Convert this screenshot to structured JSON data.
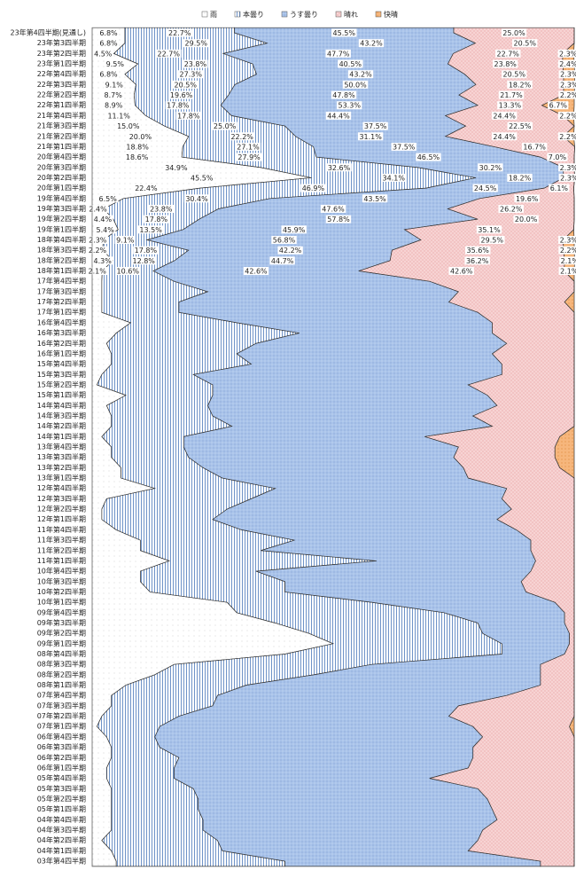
{
  "chart_data": {
    "type": "stacked_area_horizontal",
    "categories": [
      "23年第4四半期(見通し)",
      "23年第3四半期",
      "23年第2四半期",
      "23年第1四半期",
      "22年第4四半期",
      "22年第3四半期",
      "22年第2四半期",
      "22年第1四半期",
      "21年第4四半期",
      "21年第3四半期",
      "21年第2四半期",
      "21年第1四半期",
      "20年第4四半期",
      "20年第3四半期",
      "20年第2四半期",
      "20年第1四半期",
      "19年第4四半期",
      "19年第3四半期",
      "19年第2四半期",
      "19年第1四半期",
      "18年第4四半期",
      "18年第3四半期",
      "18年第2四半期",
      "18年第1四半期",
      "17年第4四半期",
      "17年第3四半期",
      "17年第2四半期",
      "17年第1四半期",
      "16年第4四半期",
      "16年第3四半期",
      "16年第2四半期",
      "16年第1四半期",
      "15年第4四半期",
      "15年第3四半期",
      "15年第2四半期",
      "15年第1四半期",
      "14年第4四半期",
      "14年第3四半期",
      "14年第2四半期",
      "14年第1四半期",
      "13年第4四半期",
      "13年第3四半期",
      "13年第2四半期",
      "13年第1四半期",
      "12年第4四半期",
      "12年第3四半期",
      "12年第2四半期",
      "12年第1四半期",
      "11年第4四半期",
      "11年第3四半期",
      "11年第2四半期",
      "11年第1四半期",
      "10年第4四半期",
      "10年第3四半期",
      "10年第2四半期",
      "10年第1四半期",
      "09年第4四半期",
      "09年第3四半期",
      "09年第2四半期",
      "09年第1四半期",
      "08年第4四半期",
      "08年第3四半期",
      "08年第2四半期",
      "08年第1四半期",
      "07年第4四半期",
      "07年第3四半期",
      "07年第2四半期",
      "07年第1四半期",
      "06年第4四半期",
      "06年第3四半期",
      "06年第2四半期",
      "06年第1四半期",
      "05年第4四半期",
      "05年第3四半期",
      "05年第2四半期",
      "05年第1四半期",
      "04年第4四半期",
      "04年第3四半期",
      "04年第2四半期",
      "04年第1四半期",
      "03年第4四半期"
    ],
    "xlim": [
      0,
      100
    ],
    "series": [
      {
        "name": "雨",
        "color": "#ffffff",
        "values": [
          6.8,
          6.8,
          4.5,
          9.5,
          6.8,
          9.1,
          8.7,
          8.9,
          11.1,
          15.0,
          20.0,
          18.8,
          18.6,
          34.9,
          45.5,
          22.4,
          6.5,
          2.4,
          4.4,
          5.4,
          2.3,
          2.2,
          4.3,
          2.1,
          2,
          2,
          2,
          2,
          8,
          5,
          3,
          4,
          4,
          2,
          1,
          7,
          3,
          4,
          4,
          2,
          4,
          4,
          6,
          6,
          13,
          3,
          2,
          2,
          5,
          10,
          10,
          16,
          10,
          10,
          12,
          28,
          30,
          38,
          45,
          50,
          40,
          17,
          13,
          7,
          4,
          4,
          2,
          1,
          3,
          4,
          4,
          3,
          3,
          4,
          4,
          4,
          4,
          4,
          2,
          4,
          5
        ],
        "value_labels": [
          "6.8%",
          "6.8%",
          "4.5%",
          "9.5%",
          "6.8%",
          "9.1%",
          "8.7%",
          "8.9%",
          "11.1%",
          "15.0%",
          "20.0%",
          "18.8%",
          "18.6%",
          "34.9%",
          "45.5%",
          "22.4%",
          "6.5%",
          "2.4%",
          "4.4%",
          "5.4%",
          "2.3%",
          "2.2%",
          "4.3%",
          "2.1%",
          null,
          null,
          null,
          null,
          null,
          null,
          null,
          null,
          null,
          null,
          null,
          null,
          null,
          null,
          null,
          null,
          null,
          null,
          null,
          null,
          null,
          null,
          null,
          null,
          null,
          null,
          null,
          null,
          null,
          null,
          null,
          null,
          null,
          null,
          null,
          null,
          null,
          null,
          null,
          null,
          null,
          null,
          null,
          null,
          null,
          null,
          null,
          null,
          null,
          null,
          null,
          null,
          null,
          null,
          null,
          null,
          null
        ]
      },
      {
        "name": "本曇り",
        "color": "#ffffff",
        "values": [
          22.7,
          29.5,
          22.7,
          23.8,
          27.3,
          20.5,
          19.6,
          17.8,
          17.8,
          25.0,
          22.2,
          27.1,
          27.9,
          32.6,
          34.1,
          46.9,
          30.4,
          23.8,
          17.8,
          13.5,
          9.1,
          17.8,
          12.8,
          10.6,
          15,
          22,
          16,
          16,
          22,
          38,
          31,
          26,
          29,
          19,
          24,
          18,
          21,
          21,
          25,
          17,
          15,
          16,
          17,
          21,
          25,
          30,
          26,
          23,
          26,
          32,
          25,
          43,
          24,
          30,
          28,
          30,
          43,
          42,
          36,
          35,
          45,
          41,
          33,
          25,
          22,
          21,
          16,
          13,
          10,
          10,
          14,
          14,
          14,
          17,
          18,
          18,
          19,
          19,
          24,
          23,
          35
        ],
        "value_labels": [
          "22.7%",
          "29.5%",
          "22.7%",
          "23.8%",
          "27.3%",
          "20.5%",
          "19.6%",
          "17.8%",
          "17.8%",
          "25.0%",
          "22.2%",
          "27.1%",
          "27.9%",
          "32.6%",
          "34.1%",
          "46.9%",
          "30.4%",
          "23.8%",
          "17.8%",
          "13.5%",
          "9.1%",
          "17.8%",
          "12.8%",
          "10.6%",
          null,
          null,
          null,
          null,
          null,
          null,
          null,
          null,
          null,
          null,
          null,
          null,
          null,
          null,
          null,
          null,
          null,
          null,
          null,
          null,
          null,
          null,
          null,
          null,
          null,
          null,
          null,
          null,
          null,
          null,
          null,
          null,
          null,
          null,
          null,
          null,
          null,
          null,
          null,
          null,
          null,
          null,
          null,
          null,
          null,
          null,
          null,
          null,
          null,
          null,
          null,
          null,
          null,
          null,
          null,
          null,
          null
        ]
      },
      {
        "name": "うす曇り",
        "color": "#a9c3ea",
        "values": [
          45.5,
          43.2,
          47.7,
          40.5,
          43.2,
          50.0,
          47.8,
          53.3,
          44.4,
          37.5,
          31.1,
          37.5,
          46.5,
          30.2,
          18.2,
          24.5,
          43.5,
          47.6,
          57.8,
          45.9,
          56.8,
          42.2,
          44.7,
          42.6,
          53,
          52,
          56,
          62,
          53,
          40,
          52,
          53,
          52,
          64,
          53,
          57,
          60,
          54,
          54,
          50,
          57,
          55,
          54,
          51,
          48,
          52,
          59,
          59,
          57,
          49,
          56,
          33,
          57,
          49,
          50,
          38,
          25,
          18,
          18,
          14,
          13,
          35,
          47,
          61,
          60,
          51,
          56,
          65,
          68,
          65,
          61,
          61,
          53,
          59,
          60,
          61,
          61,
          58,
          54,
          51,
          53
        ],
        "value_labels": [
          "45.5%",
          "43.2%",
          "47.7%",
          "40.5%",
          "43.2%",
          "50.0%",
          "47.8%",
          "53.3%",
          "44.4%",
          "37.5%",
          "31.1%",
          "37.5%",
          "46.5%",
          "30.2%",
          "18.2%",
          "24.5%",
          "43.5%",
          "47.6%",
          "57.8%",
          "45.9%",
          "56.8%",
          "42.2%",
          "44.7%",
          "42.6%",
          null,
          null,
          null,
          null,
          null,
          null,
          null,
          null,
          null,
          null,
          null,
          null,
          null,
          null,
          null,
          null,
          null,
          null,
          null,
          null,
          null,
          null,
          null,
          null,
          null,
          null,
          null,
          null,
          null,
          null,
          null,
          null,
          null,
          null,
          null,
          null,
          null,
          null,
          null,
          null,
          null,
          null,
          null,
          null,
          null,
          null,
          null,
          null,
          null,
          null,
          null,
          null,
          null,
          null,
          null,
          null,
          null
        ]
      },
      {
        "name": "晴れ",
        "color": "#f7d3d3",
        "values": [
          25.0,
          20.5,
          22.7,
          23.8,
          20.5,
          18.2,
          21.7,
          13.3,
          24.4,
          22.5,
          24.4,
          16.7,
          7.0,
          2.3,
          2.3,
          6.1,
          19.6,
          26.2,
          20.0,
          35.1,
          29.5,
          35.6,
          36.2,
          42.6,
          30,
          24,
          24,
          20,
          17,
          17,
          14,
          17,
          15,
          15,
          22,
          18,
          16,
          21,
          17,
          28,
          20,
          21,
          20,
          22,
          14,
          15,
          13,
          16,
          12,
          9,
          9,
          8,
          9,
          11,
          10,
          4,
          2,
          2,
          1,
          1,
          2,
          7,
          7,
          7,
          14,
          24,
          26,
          20,
          19,
          21,
          21,
          22,
          30,
          20,
          18,
          17,
          16,
          19,
          20,
          22,
          7
        ],
        "value_labels": [
          "25.0%",
          "20.5%",
          "22.7%",
          "23.8%",
          "20.5%",
          "18.2%",
          "21.7%",
          "13.3%",
          "24.4%",
          "22.5%",
          "24.4%",
          "16.7%",
          "7.0%",
          "2.3%",
          "2.3%",
          "6.1%",
          "19.6%",
          "26.2%",
          "20.0%",
          "35.1%",
          "29.5%",
          "35.6%",
          "36.2%",
          "42.6%",
          null,
          null,
          null,
          null,
          null,
          null,
          null,
          null,
          null,
          null,
          null,
          null,
          null,
          null,
          null,
          null,
          null,
          null,
          null,
          null,
          null,
          null,
          null,
          null,
          null,
          null,
          null,
          null,
          null,
          null,
          null,
          null,
          null,
          null,
          null,
          null,
          null,
          null,
          null,
          null,
          null,
          null,
          null,
          null,
          null,
          null,
          null,
          null,
          null,
          null,
          null,
          null,
          null,
          null,
          null,
          null,
          null
        ]
      },
      {
        "name": "快晴",
        "color": "#f6b67c",
        "values": [
          0,
          0,
          2.3,
          2.4,
          2.3,
          2.3,
          2.2,
          6.7,
          2.2,
          0,
          2.2,
          0,
          0,
          0,
          0,
          0,
          0,
          0,
          0,
          0,
          2.3,
          2.2,
          2.1,
          2.1,
          0,
          0,
          2,
          0,
          0,
          0,
          0,
          0,
          0,
          0,
          0,
          0,
          0,
          0,
          0,
          3,
          4,
          4,
          3,
          0,
          0,
          0,
          0,
          0,
          0,
          0,
          0,
          0,
          0,
          0,
          0,
          0,
          0,
          0,
          0,
          0,
          0,
          0,
          0,
          0,
          0,
          0,
          0,
          1,
          0,
          0,
          0,
          0,
          0,
          0,
          0,
          0,
          0,
          0,
          0,
          0,
          0
        ],
        "value_labels": [
          null,
          null,
          "2.3%",
          "2.4%",
          "2.3%",
          "2.3%",
          "2.2%",
          "6.7%",
          "2.2%",
          null,
          "2.2%",
          null,
          null,
          null,
          null,
          null,
          null,
          null,
          null,
          null,
          "2.3%",
          "2.2%",
          "2.1%",
          "2.1%",
          null,
          null,
          null,
          null,
          null,
          null,
          null,
          null,
          null,
          null,
          null,
          null,
          null,
          null,
          null,
          null,
          null,
          null,
          null,
          null,
          null,
          null,
          null,
          null,
          null,
          null,
          null,
          null,
          null,
          null,
          null,
          null,
          null,
          null,
          null,
          null,
          null,
          null,
          null,
          null,
          null,
          null,
          null,
          null,
          null,
          null,
          null,
          null,
          null,
          null,
          null,
          null,
          null,
          null,
          null,
          null,
          null
        ]
      }
    ]
  }
}
